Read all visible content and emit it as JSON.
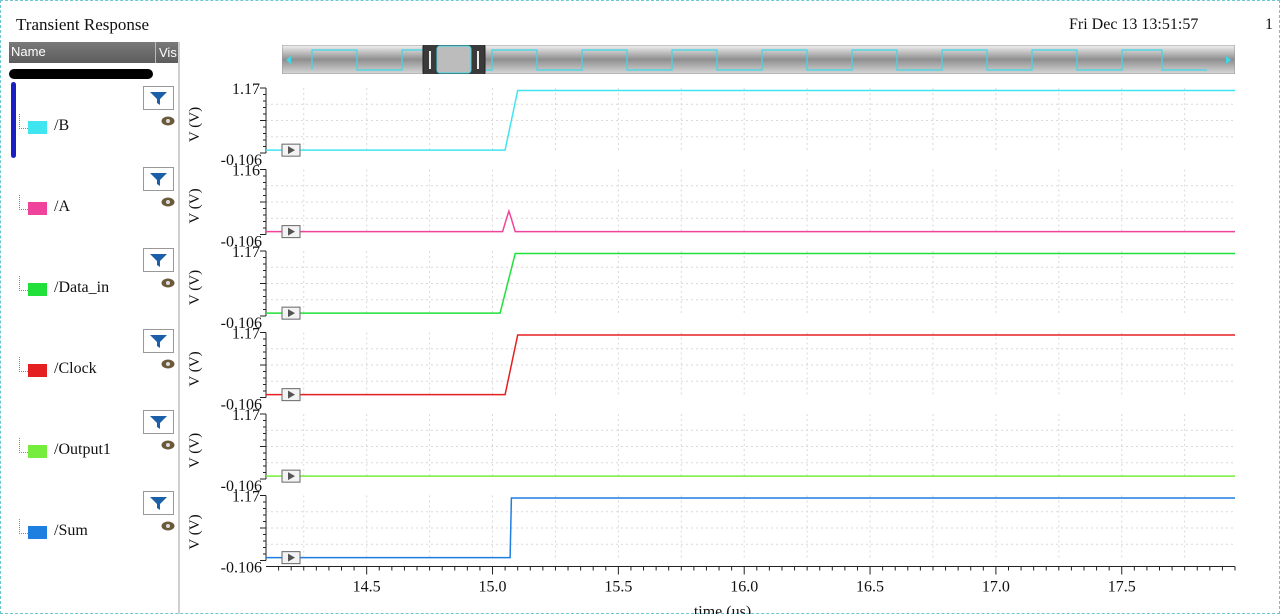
{
  "window": {
    "title": "Transient Response",
    "datetime": "Fri Dec 13 13:51:57",
    "page_number": "1"
  },
  "panel": {
    "header_name": "Name",
    "header_vis": "Vis"
  },
  "signals": [
    {
      "name": "/B",
      "color": "#3fe6f0"
    },
    {
      "name": "/A",
      "color": "#f0449c"
    },
    {
      "name": "/Data_in",
      "color": "#22e03a"
    },
    {
      "name": "/Clock",
      "color": "#e52020"
    },
    {
      "name": "/Output1",
      "color": "#76ec3c"
    },
    {
      "name": "/Sum",
      "color": "#1f7fe0"
    }
  ],
  "icons": {
    "filter": "filter-funnel-icon",
    "visibility": "eye-icon",
    "marker": "play-triangle-icon"
  },
  "chart_data": {
    "type": "line",
    "xlabel": "time (us)",
    "xlim": [
      14.1,
      17.95
    ],
    "xticks": [
      14.5,
      15.0,
      15.5,
      16.0,
      16.5,
      17.0,
      17.5
    ],
    "xtick_labels": [
      "14.5",
      "15.0",
      "15.5",
      "16.0",
      "16.5",
      "17.0",
      "17.5"
    ],
    "grid": true,
    "panes": [
      {
        "name": "/B",
        "ylabel": "V (V)",
        "ylim": [
          -0.106,
          1.17
        ],
        "ytick_labels": [
          "1.17",
          "-0.106"
        ],
        "x": [
          14.1,
          15.05,
          15.1,
          17.95
        ],
        "y": [
          -0.05,
          -0.05,
          1.12,
          1.12
        ]
      },
      {
        "name": "/A",
        "ylabel": "V (V)",
        "ylim": [
          -0.106,
          1.16
        ],
        "ytick_labels": [
          "1.16",
          "-0.106"
        ],
        "x": [
          14.1,
          15.04,
          15.055,
          15.065,
          15.075,
          15.09,
          17.95
        ],
        "y": [
          -0.05,
          -0.05,
          0.2,
          0.35,
          0.2,
          -0.05,
          -0.05
        ]
      },
      {
        "name": "/Data_in",
        "ylabel": "V (V)",
        "ylim": [
          -0.106,
          1.17
        ],
        "ytick_labels": [
          "1.17",
          "-0.106"
        ],
        "x": [
          14.1,
          15.03,
          15.09,
          17.95
        ],
        "y": [
          -0.05,
          -0.05,
          1.12,
          1.12
        ]
      },
      {
        "name": "/Clock",
        "ylabel": "V (V)",
        "ylim": [
          -0.106,
          1.17
        ],
        "ytick_labels": [
          "1.17",
          "-0.106"
        ],
        "x": [
          14.1,
          15.05,
          15.1,
          17.95
        ],
        "y": [
          -0.05,
          -0.05,
          1.12,
          1.12
        ]
      },
      {
        "name": "/Output1",
        "ylabel": "V (V)",
        "ylim": [
          -0.106,
          1.17
        ],
        "ytick_labels": [
          "1.17",
          "-0.106"
        ],
        "x": [
          14.1,
          17.95
        ],
        "y": [
          -0.05,
          -0.05
        ]
      },
      {
        "name": "/Sum",
        "ylabel": "V (V)",
        "ylim": [
          -0.106,
          1.17
        ],
        "ytick_labels": [
          "1.17",
          "-0.106"
        ],
        "x": [
          14.1,
          15.07,
          15.075,
          17.95
        ],
        "y": [
          -0.05,
          -0.05,
          1.12,
          1.12
        ]
      }
    ]
  }
}
